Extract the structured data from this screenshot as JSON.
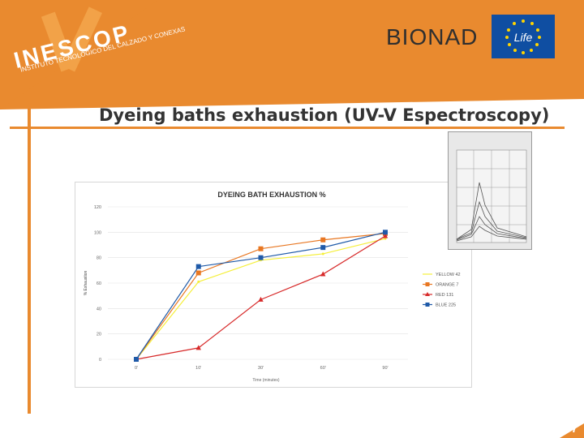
{
  "slide": {
    "title": "Dyeing baths exhaustion (UV-V Espectroscopy)",
    "page_number": "7",
    "logo": {
      "name": "INESCOP",
      "subtitle": "INSTITUTO TECNOLÓGICO DEL CALZADO Y CONEXAS"
    },
    "partner_logo": "BIONAD",
    "life_logo": "Life",
    "colors": {
      "accent": "#e98a2f",
      "white": "#ffffff"
    }
  },
  "chart_data": {
    "type": "line",
    "title": "DYEING BATH EXHAUSTION %",
    "xlabel": "Time (minutes)",
    "ylabel": "% Exhaustion",
    "categories": [
      "0'",
      "10'",
      "30'",
      "60'",
      "90'"
    ],
    "ylim": [
      0,
      120
    ],
    "yticks": [
      "0",
      "20",
      "40",
      "60",
      "80",
      "100",
      "120"
    ],
    "legend_position": "right",
    "series": [
      {
        "name": "YELLOW 42",
        "color": "#f5ef3a",
        "marker": "none",
        "values": [
          0,
          61,
          78,
          83,
          95
        ]
      },
      {
        "name": "ORANGE 7",
        "color": "#e87722",
        "marker": "square",
        "values": [
          0,
          68,
          87,
          94,
          99
        ]
      },
      {
        "name": "RED 131",
        "color": "#d72a2a",
        "marker": "triangle",
        "values": [
          0,
          9,
          47,
          67,
          97
        ]
      },
      {
        "name": "BLUE 225",
        "color": "#1f5aa8",
        "marker": "square",
        "values": [
          0,
          73,
          80,
          88,
          100
        ]
      }
    ]
  }
}
